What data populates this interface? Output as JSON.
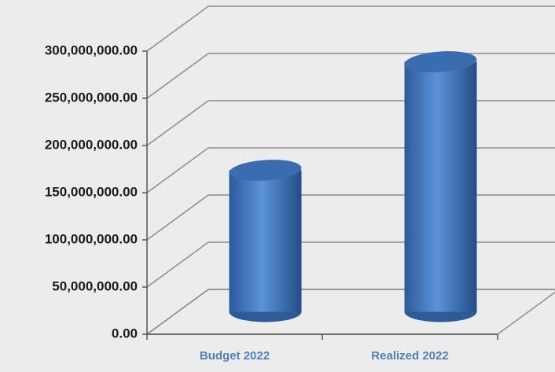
{
  "chart_data": {
    "type": "bar",
    "categories": [
      "Budget 2022",
      "Realized 2022"
    ],
    "values": [
      150000000,
      265000000
    ],
    "color": "#4f81bd",
    "ylim": [
      0,
      300000000
    ],
    "yticks": [
      {
        "value": 0,
        "label": "0.00"
      },
      {
        "value": 50000000,
        "label": "50,000,000.00"
      },
      {
        "value": 100000000,
        "label": "100,000,000.00"
      },
      {
        "value": 150000000,
        "label": "150,000,000.00"
      },
      {
        "value": 200000000,
        "label": "200,000,000.00"
      },
      {
        "value": 250000000,
        "label": "250,000,000.00"
      },
      {
        "value": 300000000,
        "label": "300,000,000.00"
      }
    ],
    "grid": true
  }
}
